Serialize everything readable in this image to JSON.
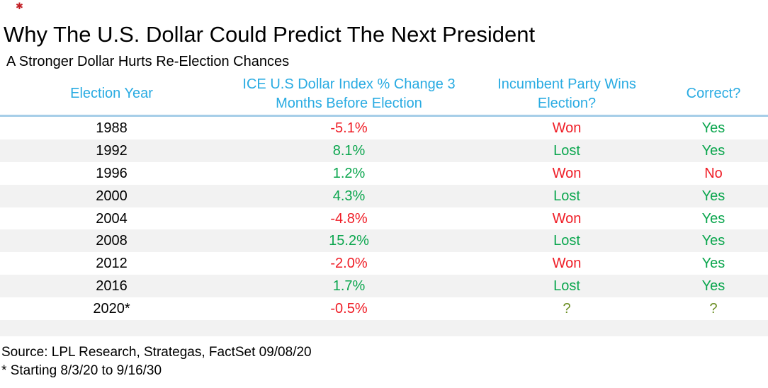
{
  "colors": {
    "black": "#000000",
    "red": "#ef1c25",
    "green": "#0ba64e",
    "olive": "#6b8e23",
    "header_blue": "#29abe2",
    "divider_blue": "#a6cee8",
    "stripe_gray": "#f2f2f2",
    "mark_red": "#c22026"
  },
  "decoration": {
    "mark": "✱"
  },
  "chart_data": {
    "type": "table",
    "title": "Why The U.S. Dollar Could Predict The Next President",
    "subtitle": "A Stronger Dollar Hurts Re-Election Chances",
    "columns": [
      "Election Year",
      "ICE U.S Dollar Index % Change 3 Months Before Election",
      "Incumbent Party Wins Election?",
      "Correct?"
    ],
    "rows": [
      [
        "1988",
        "-5.1%",
        "Won",
        "Yes"
      ],
      [
        "1992",
        "8.1%",
        "Lost",
        "Yes"
      ],
      [
        "1996",
        "1.2%",
        "Won",
        "No"
      ],
      [
        "2000",
        "4.3%",
        "Lost",
        "Yes"
      ],
      [
        "2004",
        "-4.8%",
        "Won",
        "Yes"
      ],
      [
        "2008",
        "15.2%",
        "Lost",
        "Yes"
      ],
      [
        "2012",
        "-2.0%",
        "Won",
        "Yes"
      ],
      [
        "2016",
        "1.7%",
        "Lost",
        "Yes"
      ],
      [
        "2020*",
        "-0.5%",
        "?",
        "?"
      ]
    ],
    "row_colors": [
      [
        "black",
        "red",
        "red",
        "green"
      ],
      [
        "black",
        "green",
        "green",
        "green"
      ],
      [
        "black",
        "green",
        "red",
        "red"
      ],
      [
        "black",
        "green",
        "green",
        "green"
      ],
      [
        "black",
        "red",
        "red",
        "green"
      ],
      [
        "black",
        "green",
        "green",
        "green"
      ],
      [
        "black",
        "red",
        "red",
        "green"
      ],
      [
        "black",
        "green",
        "green",
        "green"
      ],
      [
        "black",
        "red",
        "olive",
        "olive"
      ]
    ],
    "source": "Source: LPL Research, Strategas, FactSet 09/08/20",
    "footnote": "* Starting 8/3/20 to 9/16/30",
    "layout_hints": {
      "row_striping": "alternate gray starting with second data row",
      "header_divider": "light blue horizontal rule under header",
      "alignment": "all columns centered"
    }
  }
}
